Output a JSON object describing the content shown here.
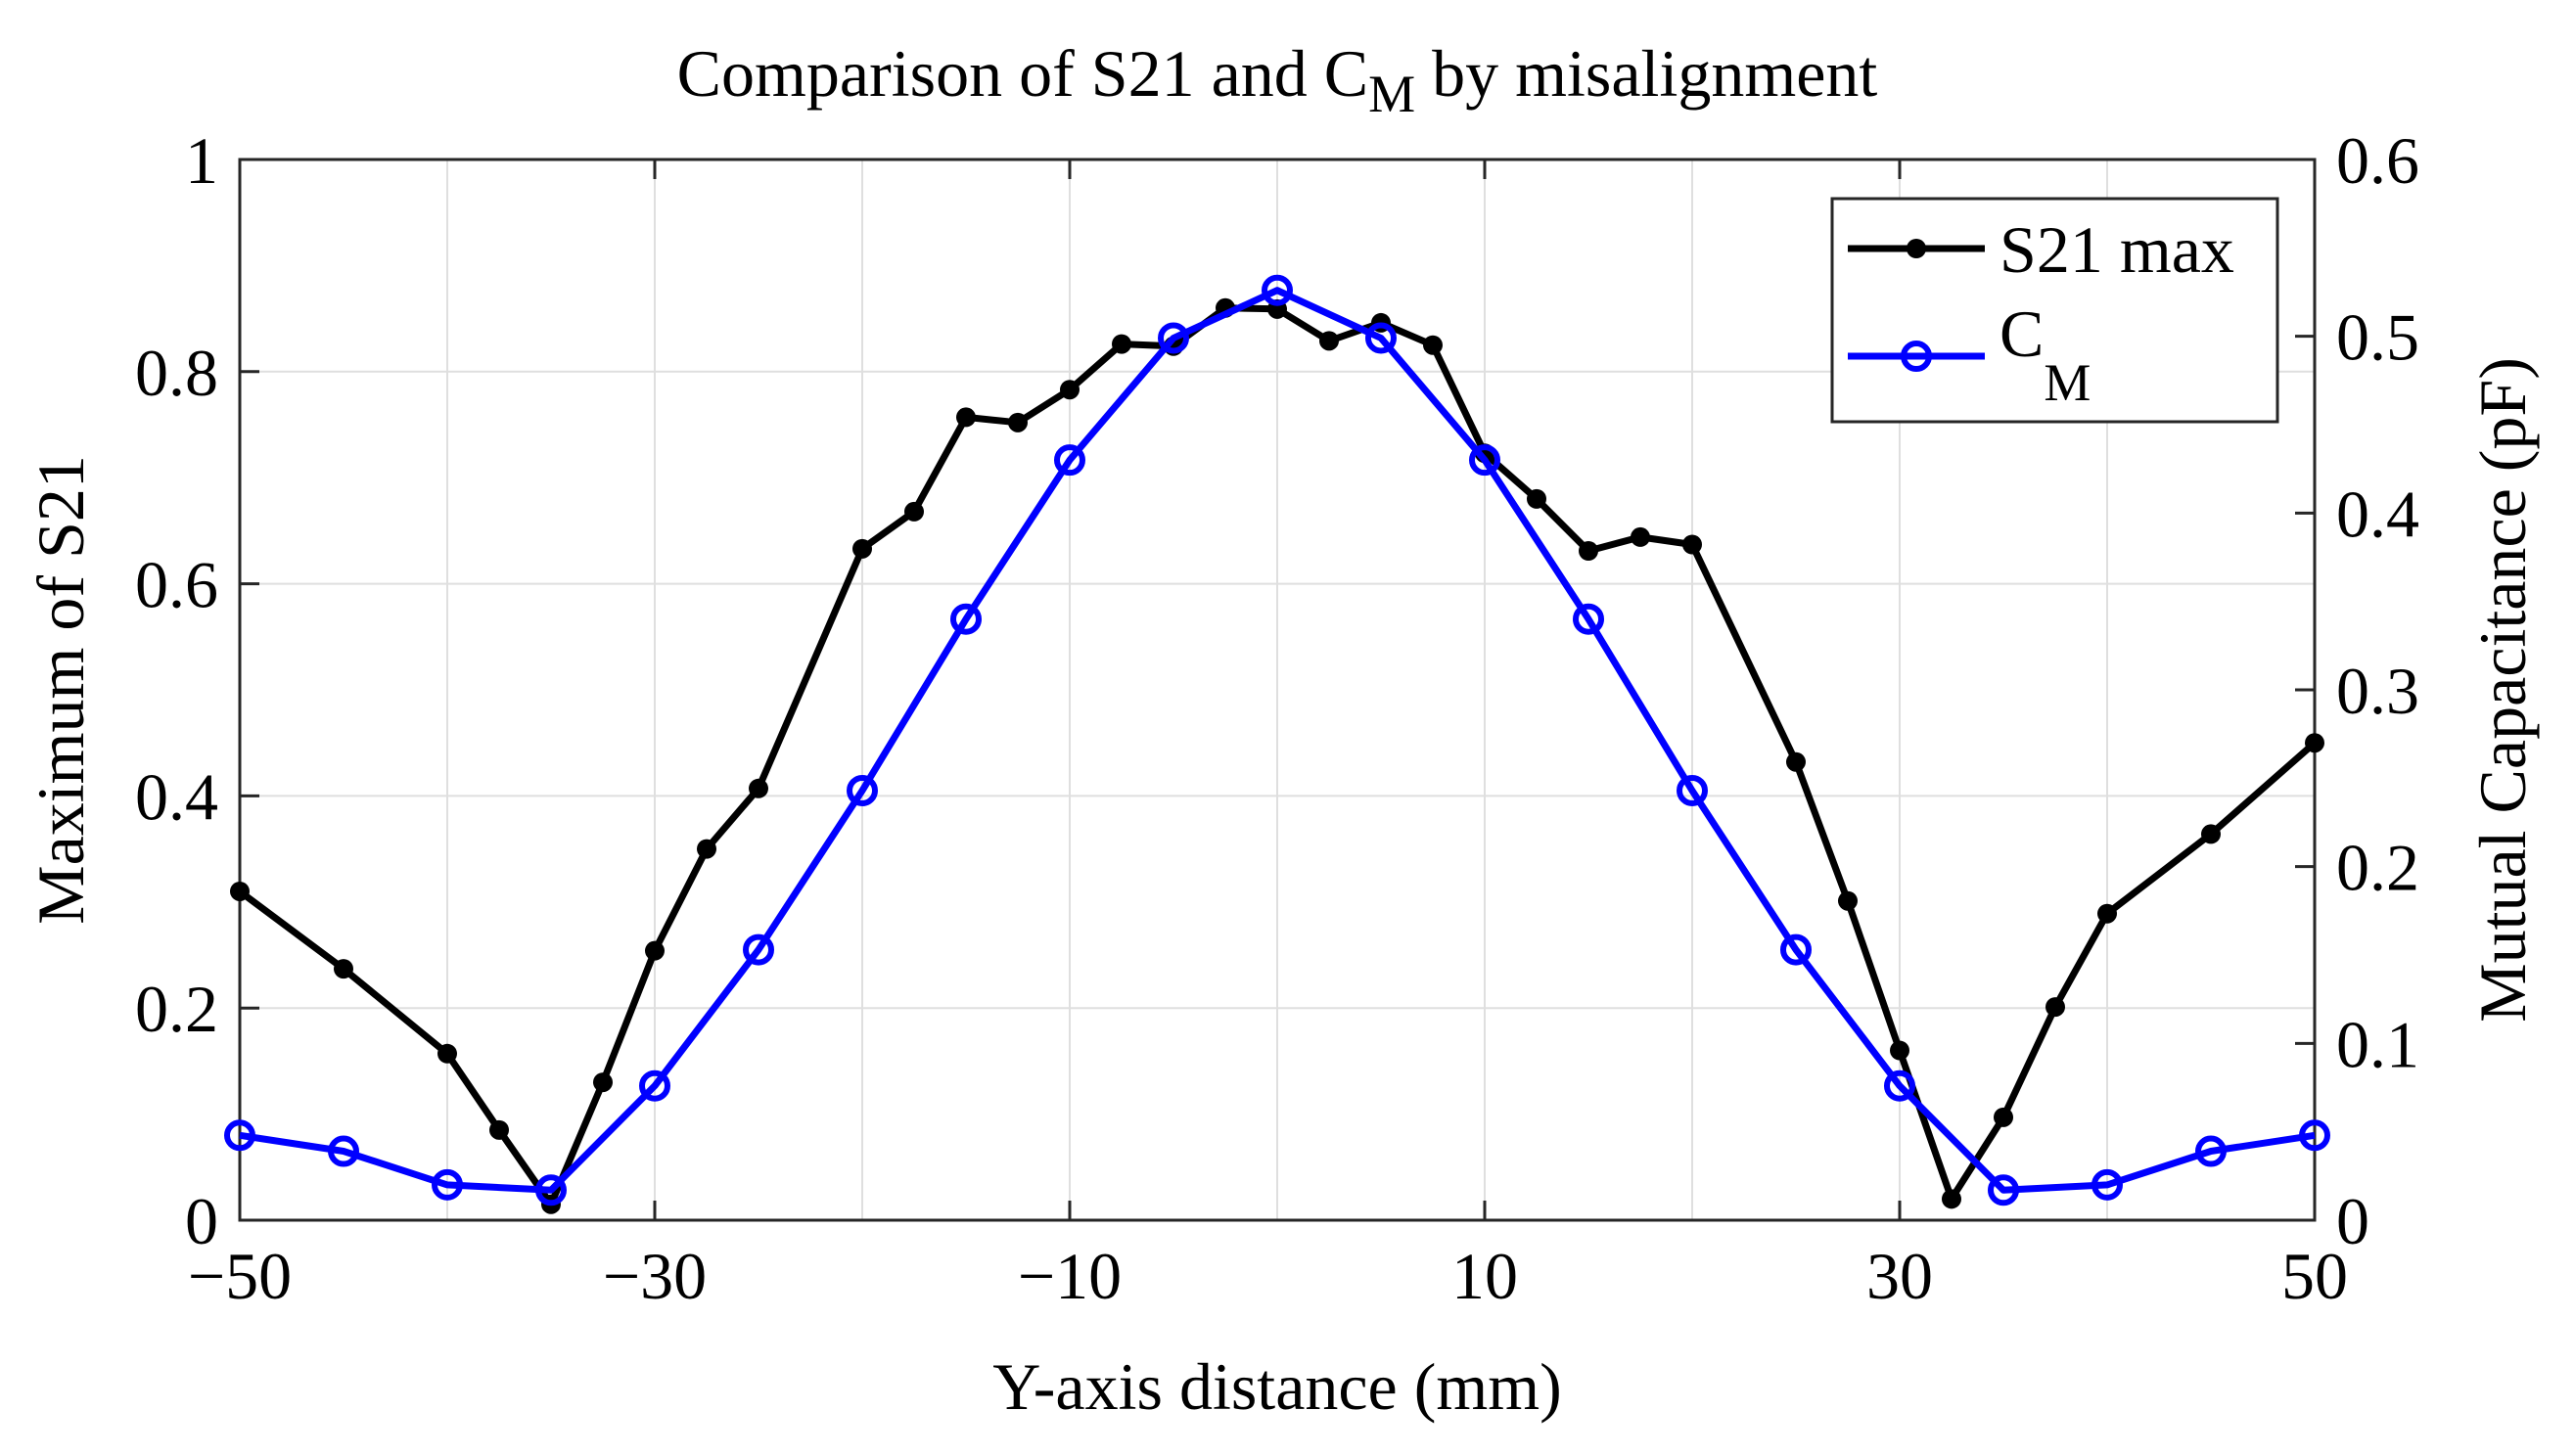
{
  "chart_data": {
    "type": "line",
    "title": "Comparison of S21 and C",
    "title_subscript": "M",
    "title_suffix": " by misalignment",
    "xlabel": "Y-axis distance (mm)",
    "ylabel_left": "Maximum of S21",
    "ylabel_right": "Mutual Capacitance (pF)",
    "xlim": [
      -50,
      50
    ],
    "ylim_left": [
      0,
      1
    ],
    "ylim_right": [
      0,
      0.6
    ],
    "x_ticks": [
      -50,
      -30,
      -10,
      10,
      30,
      50
    ],
    "x_tick_labels": [
      "−50",
      "−30",
      "−10",
      "10",
      "30",
      "50"
    ],
    "x_grid": [
      -50,
      -40,
      -30,
      -20,
      -10,
      0,
      10,
      20,
      30,
      40,
      50
    ],
    "y_left_ticks": [
      0,
      0.2,
      0.4,
      0.6,
      0.8,
      1
    ],
    "y_left_tick_labels": [
      "0",
      "0.2",
      "0.4",
      "0.6",
      "0.8",
      "1"
    ],
    "y_right_ticks": [
      0,
      0.1,
      0.2,
      0.3,
      0.4,
      0.5,
      0.6
    ],
    "y_right_tick_labels": [
      "0",
      "0.1",
      "0.2",
      "0.3",
      "0.4",
      "0.5",
      "0.6"
    ],
    "grid": true,
    "legend_position": "top-right",
    "series": [
      {
        "name": "S21 max",
        "axis": "left",
        "color": "#000000",
        "marker": "filled-circle",
        "x": [
          -50,
          -45,
          -40,
          -37.5,
          -35,
          -32.5,
          -30,
          -27.5,
          -25,
          -20,
          -17.5,
          -15,
          -12.5,
          -10,
          -7.5,
          -5,
          -2.5,
          0,
          2.5,
          5,
          7.5,
          10,
          12.5,
          15,
          17.5,
          20,
          25,
          27.5,
          30,
          32.5,
          35,
          37.5,
          40,
          45,
          50
        ],
        "values": [
          0.31,
          0.237,
          0.157,
          0.085,
          0.015,
          0.13,
          0.254,
          0.35,
          0.407,
          0.633,
          0.668,
          0.757,
          0.752,
          0.783,
          0.826,
          0.824,
          0.86,
          0.859,
          0.829,
          0.846,
          0.825,
          0.723,
          0.68,
          0.631,
          0.644,
          0.637,
          0.432,
          0.301,
          0.16,
          0.02,
          0.097,
          0.201,
          0.289,
          0.364,
          0.45
        ]
      },
      {
        "name": "C",
        "name_subscript": "M",
        "axis": "right",
        "color": "#0000ff",
        "marker": "open-circle",
        "x": [
          -50,
          -45,
          -40,
          -35,
          -30,
          -25,
          -20,
          -15,
          -10,
          -5,
          0,
          5,
          10,
          15,
          20,
          25,
          30,
          35,
          40,
          45,
          50
        ],
        "values": [
          0.048,
          0.039,
          0.02,
          0.017,
          0.076,
          0.153,
          0.243,
          0.34,
          0.43,
          0.499,
          0.526,
          0.499,
          0.43,
          0.34,
          0.243,
          0.153,
          0.076,
          0.017,
          0.02,
          0.039,
          0.048
        ]
      }
    ]
  }
}
